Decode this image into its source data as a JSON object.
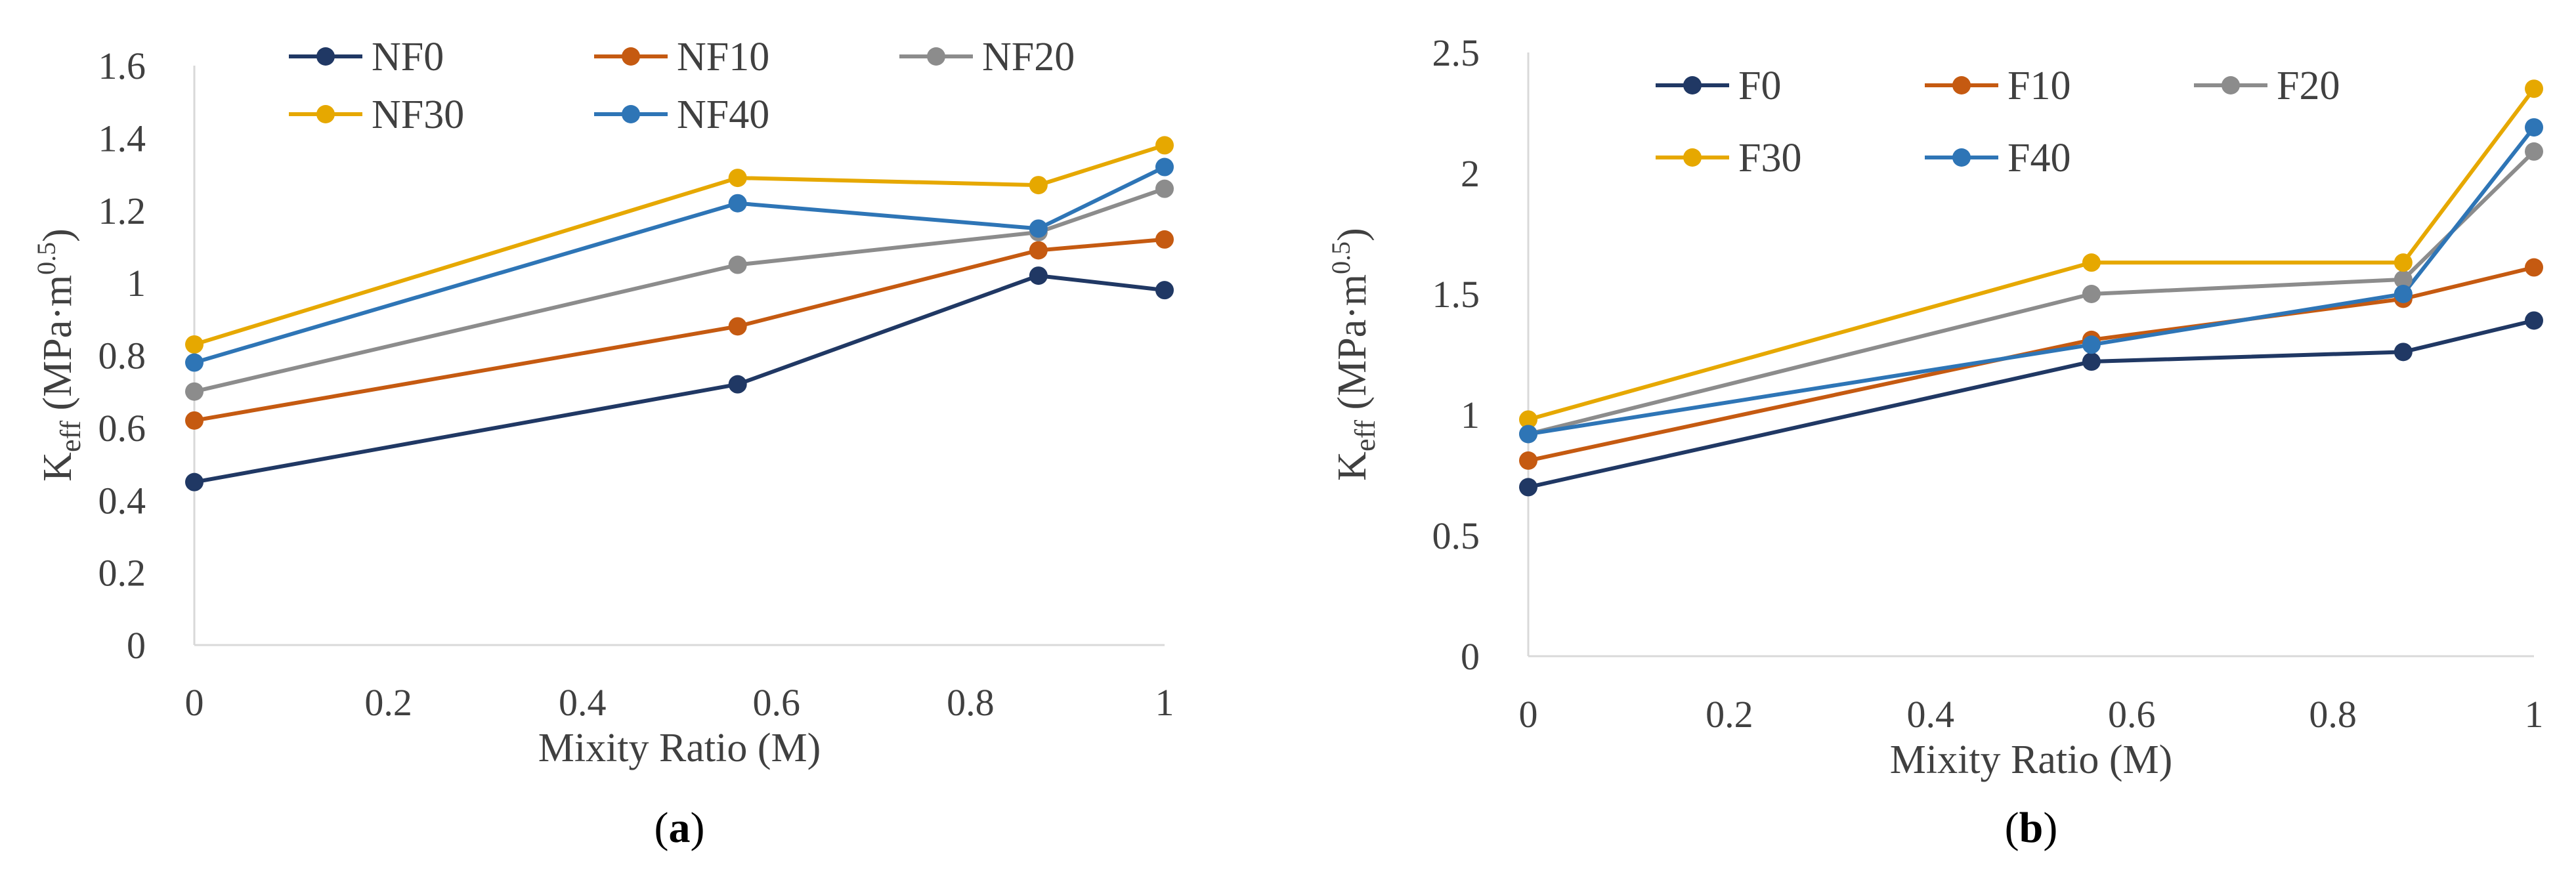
{
  "chart_data": [
    {
      "type": "line",
      "panel_label_open": "(",
      "panel_label": "a",
      "panel_label_close": ")",
      "xlabel": "Mixity Ratio (M)",
      "ylabel_main": "K",
      "ylabel_sub": "eff",
      "ylabel_rest": " (MPa·m",
      "ylabel_sup": "0.5",
      "ylabel_end": ")",
      "xlim": [
        0,
        1
      ],
      "ylim": [
        0,
        1.6
      ],
      "xticks": [
        0,
        0.2,
        0.4,
        0.6,
        0.8,
        1
      ],
      "xtick_labels": [
        "0",
        "0.2",
        "0.4",
        "0.6",
        "0.8",
        "1"
      ],
      "yticks": [
        0,
        0.2,
        0.4,
        0.6,
        0.8,
        1,
        1.2,
        1.4,
        1.6
      ],
      "ytick_labels": [
        "0",
        "0.2",
        "0.4",
        "0.6",
        "0.8",
        "1",
        "1.2",
        "1.4",
        "1.6"
      ],
      "x": [
        0,
        0.56,
        0.87,
        1
      ],
      "series": [
        {
          "name": "NF0",
          "color": "#203864",
          "values": [
            0.45,
            0.72,
            1.02,
            0.98
          ]
        },
        {
          "name": "NF10",
          "color": "#C55A11",
          "values": [
            0.62,
            0.88,
            1.09,
            1.12
          ]
        },
        {
          "name": "NF20",
          "color": "#8C8C8C",
          "values": [
            0.7,
            1.05,
            1.14,
            1.26
          ]
        },
        {
          "name": "NF30",
          "color": "#E6A800",
          "values": [
            0.83,
            1.29,
            1.27,
            1.38
          ]
        },
        {
          "name": "NF40",
          "color": "#2E75B6",
          "values": [
            0.78,
            1.22,
            1.15,
            1.32
          ]
        }
      ]
    },
    {
      "type": "line",
      "panel_label_open": "(",
      "panel_label": "b",
      "panel_label_close": ")",
      "xlabel": "Mixity Ratio (M)",
      "ylabel_main": "K",
      "ylabel_sub": "eff",
      "ylabel_rest": " (MPa·m",
      "ylabel_sup": "0.5",
      "ylabel_end": ")",
      "xlim": [
        0,
        1
      ],
      "ylim": [
        0,
        2.5
      ],
      "xticks": [
        0,
        0.2,
        0.4,
        0.6,
        0.8,
        1
      ],
      "xtick_labels": [
        "0",
        "0.2",
        "0.4",
        "0.6",
        "0.8",
        "1"
      ],
      "yticks": [
        0,
        0.5,
        1,
        1.5,
        2,
        2.5
      ],
      "ytick_labels": [
        "0",
        "0.5",
        "1",
        "1.5",
        "2",
        "2.5"
      ],
      "x": [
        0,
        0.56,
        0.87,
        1
      ],
      "series": [
        {
          "name": "F0",
          "color": "#203864",
          "values": [
            0.7,
            1.22,
            1.26,
            1.39
          ]
        },
        {
          "name": "F10",
          "color": "#C55A11",
          "values": [
            0.81,
            1.31,
            1.48,
            1.61
          ]
        },
        {
          "name": "F20",
          "color": "#8C8C8C",
          "values": [
            0.92,
            1.5,
            1.56,
            2.09
          ]
        },
        {
          "name": "F30",
          "color": "#E6A800",
          "values": [
            0.98,
            1.63,
            1.63,
            2.35
          ]
        },
        {
          "name": "F40",
          "color": "#2E75B6",
          "values": [
            0.92,
            1.29,
            1.5,
            2.19
          ]
        }
      ]
    }
  ]
}
